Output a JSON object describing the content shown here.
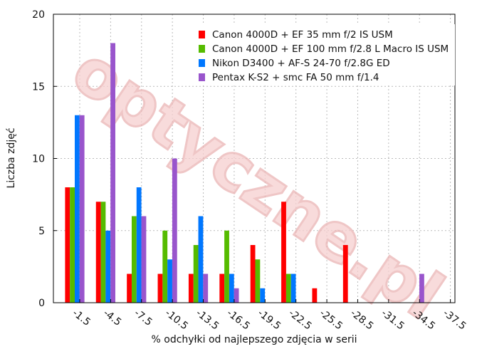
{
  "watermark": "optyczne.pl",
  "chart_data": {
    "type": "bar",
    "xlabel": "% odchyłki od najlepszego zdjęcia w serii",
    "ylabel": "Liczba zdjęć",
    "ylim": [
      0,
      20
    ],
    "yticks": [
      "0",
      "5",
      "10",
      "15",
      "20"
    ],
    "categories": [
      "-1.5",
      "-4.5",
      "-7.5",
      "-10.5",
      "-13.5",
      "-16.5",
      "-19.5",
      "-22.5",
      "-25.5",
      "-28.5",
      "-31.5",
      "-34.5",
      "-37.5"
    ],
    "series": [
      {
        "name": "Canon 4000D + EF 35 mm f/2 IS USM",
        "color": "#ff0000",
        "values": [
          8,
          7,
          2,
          2,
          2,
          2,
          4,
          7,
          1,
          4,
          0,
          0,
          0
        ]
      },
      {
        "name": "Canon 4000D + EF 100 mm f/2.8 L Macro IS USM",
        "color": "#55bb00",
        "values": [
          8,
          7,
          6,
          5,
          4,
          5,
          3,
          2,
          0,
          0,
          0,
          0,
          0
        ]
      },
      {
        "name": "Nikon D3400 + AF-S 24-70 f/2.8G ED",
        "color": "#0077ff",
        "values": [
          13,
          5,
          8,
          3,
          6,
          2,
          1,
          2,
          0,
          0,
          0,
          0,
          0
        ]
      },
      {
        "name": "Pentax K-S2 + smc FA 50 mm f/1.4",
        "color": "#9955cc",
        "values": [
          13,
          18,
          6,
          10,
          2,
          1,
          0,
          0,
          0,
          0,
          0,
          2,
          0
        ]
      }
    ],
    "grid": "dashed",
    "legend": "top-right"
  }
}
